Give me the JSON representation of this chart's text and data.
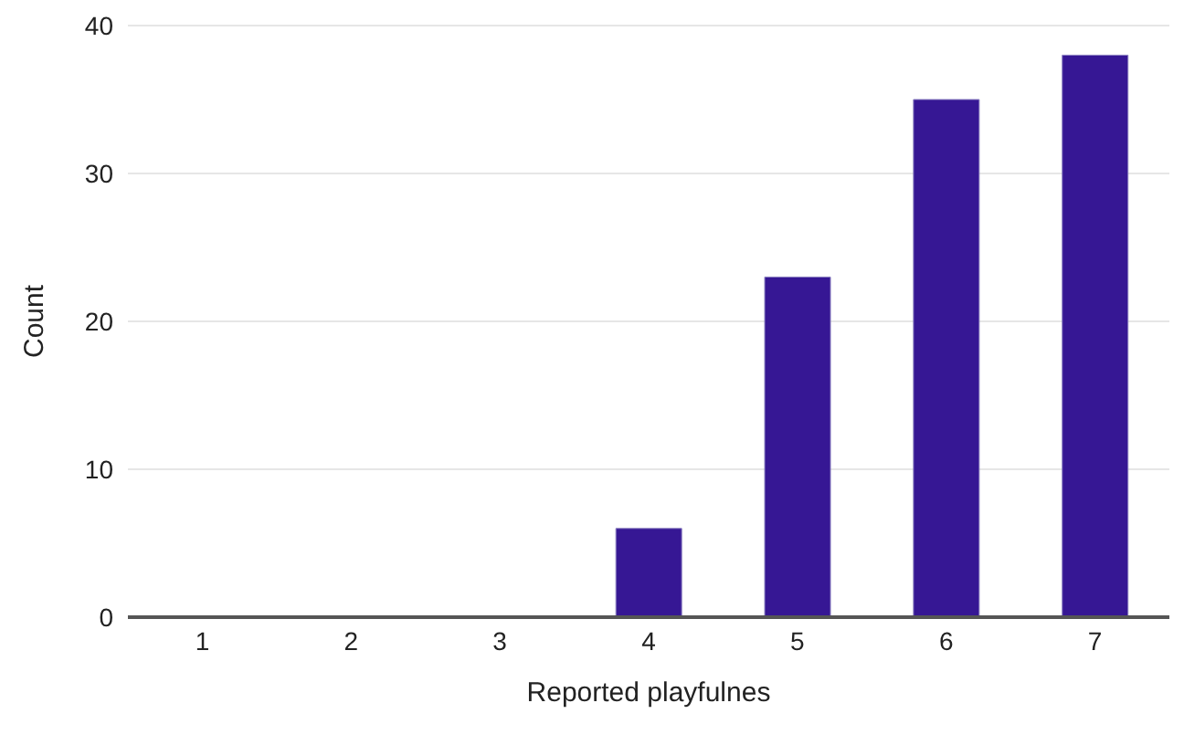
{
  "chart_data": {
    "type": "bar",
    "xlabel": "Reported playfulnes",
    "ylabel": "Count",
    "categories": [
      "1",
      "2",
      "3",
      "4",
      "5",
      "6",
      "7"
    ],
    "values": [
      0,
      0,
      0,
      6,
      23,
      35,
      38
    ],
    "color": "#361794",
    "ylim": [
      0,
      40
    ],
    "yticks": [
      0,
      10,
      20,
      30,
      40
    ],
    "grid": "y"
  }
}
